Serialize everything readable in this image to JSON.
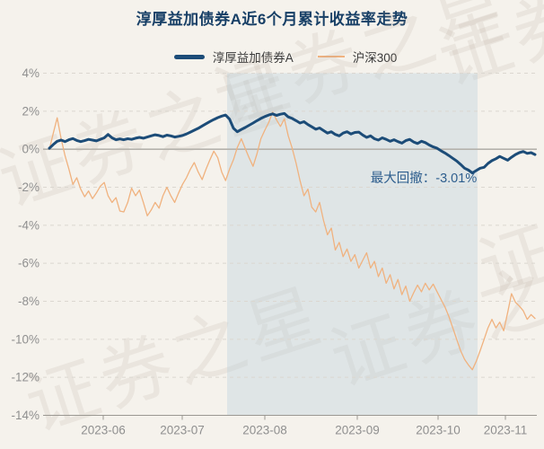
{
  "title": "淳厚益加债券A近6个月累计收益率走势",
  "watermark": "证券之星",
  "legend": {
    "fund": {
      "label": "淳厚益加债券A",
      "color": "#1c4c78"
    },
    "index": {
      "label": "沪深300",
      "color": "#f0b27f"
    }
  },
  "annotation": {
    "max_drawdown_label": "最大回撤：-3.01%"
  },
  "chart_data": {
    "type": "line",
    "title": "淳厚益加债券A近6个月累计收益率走势",
    "xlabel": "",
    "ylabel": "",
    "ylim": [
      -14,
      4
    ],
    "grid": "dashed-horizontal",
    "legend_position": "top-center",
    "y_ticks": [
      "4%",
      "2%",
      "0%",
      "-2%",
      "-4%",
      "-6%",
      "-8%",
      "-10%",
      "-12%",
      "-14%"
    ],
    "y_tick_values": [
      4,
      2,
      0,
      -2,
      -4,
      -6,
      -8,
      -10,
      -12,
      -14
    ],
    "x_ticks": [
      "2023-06",
      "2023-07",
      "2023-08",
      "2023-09",
      "2023-10",
      "2023-11"
    ],
    "drawdown_region": {
      "label": "最大回撤：-3.01%",
      "value": -3.01
    },
    "series": [
      {
        "id": "fund",
        "name": "淳厚益加债券A",
        "color": "#1c4c78",
        "width": 3,
        "values": [
          0.05,
          0.25,
          0.42,
          0.48,
          0.4,
          0.5,
          0.56,
          0.46,
          0.4,
          0.45,
          0.52,
          0.48,
          0.44,
          0.52,
          0.6,
          0.78,
          0.6,
          0.5,
          0.54,
          0.5,
          0.55,
          0.52,
          0.58,
          0.62,
          0.58,
          0.64,
          0.7,
          0.76,
          0.72,
          0.66,
          0.74,
          0.7,
          0.64,
          0.68,
          0.72,
          0.8,
          0.9,
          1.0,
          1.1,
          1.22,
          1.34,
          1.46,
          1.56,
          1.66,
          1.74,
          1.8,
          1.58,
          1.1,
          0.92,
          1.04,
          1.14,
          1.26,
          1.38,
          1.5,
          1.62,
          1.72,
          1.8,
          1.86,
          1.78,
          1.84,
          1.88,
          1.7,
          1.62,
          1.5,
          1.38,
          1.45,
          1.3,
          1.18,
          1.05,
          1.12,
          0.98,
          0.85,
          0.92,
          0.78,
          0.7,
          0.85,
          0.92,
          0.8,
          0.88,
          0.9,
          0.75,
          0.62,
          0.7,
          0.55,
          0.48,
          0.6,
          0.52,
          0.42,
          0.5,
          0.4,
          0.32,
          0.45,
          0.52,
          0.38,
          0.3,
          0.42,
          0.35,
          0.22,
          0.12,
          0.05,
          -0.08,
          -0.2,
          -0.33,
          -0.48,
          -0.62,
          -0.8,
          -1.0,
          -1.1,
          -1.25,
          -1.12,
          -1.0,
          -0.95,
          -0.75,
          -0.6,
          -0.5,
          -0.38,
          -0.48,
          -0.58,
          -0.42,
          -0.28,
          -0.18,
          -0.12,
          -0.22,
          -0.18,
          -0.28
        ]
      },
      {
        "id": "index",
        "name": "沪深300",
        "color": "#f0b27f",
        "width": 1.3,
        "values": [
          0.0,
          0.85,
          1.65,
          0.55,
          -0.35,
          -1.05,
          -1.85,
          -1.5,
          -2.1,
          -2.5,
          -2.2,
          -2.6,
          -2.3,
          -1.95,
          -1.75,
          -2.45,
          -2.8,
          -2.55,
          -3.25,
          -3.3,
          -2.8,
          -2.05,
          -2.45,
          -2.15,
          -2.8,
          -3.5,
          -3.2,
          -2.8,
          -3.1,
          -2.45,
          -2.0,
          -2.45,
          -2.8,
          -2.3,
          -1.85,
          -1.5,
          -1.05,
          -0.7,
          -1.2,
          -1.6,
          -1.05,
          -0.55,
          -0.1,
          -0.45,
          -1.2,
          -1.65,
          -1.05,
          -0.55,
          0.1,
          0.55,
          0.05,
          -0.45,
          -0.9,
          -0.25,
          0.55,
          1.0,
          1.4,
          1.95,
          1.55,
          1.2,
          1.6,
          0.7,
          0.05,
          -0.75,
          -1.65,
          -2.45,
          -2.1,
          -3.05,
          -3.3,
          -2.8,
          -3.75,
          -4.5,
          -4.15,
          -5.3,
          -4.9,
          -5.65,
          -5.25,
          -5.9,
          -5.55,
          -6.25,
          -5.85,
          -5.45,
          -6.25,
          -5.9,
          -6.7,
          -6.25,
          -7.05,
          -6.6,
          -7.35,
          -6.85,
          -7.65,
          -7.2,
          -8.0,
          -7.55,
          -7.15,
          -7.5,
          -7.05,
          -7.4,
          -7.1,
          -7.5,
          -7.9,
          -8.3,
          -8.8,
          -9.4,
          -10.0,
          -10.6,
          -11.05,
          -11.35,
          -11.6,
          -11.15,
          -10.6,
          -10.0,
          -9.4,
          -8.95,
          -9.4,
          -9.1,
          -9.55,
          -8.6,
          -7.6,
          -8.05,
          -8.25,
          -8.5,
          -8.95,
          -8.7,
          -8.9
        ]
      }
    ]
  }
}
